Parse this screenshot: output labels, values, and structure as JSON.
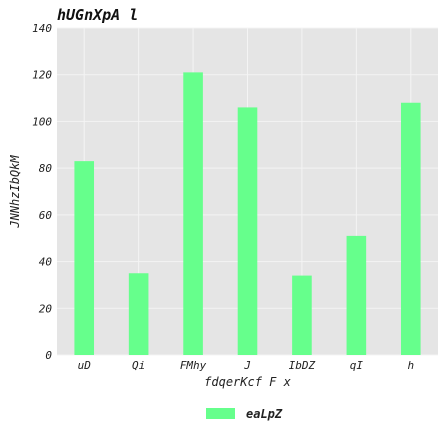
{
  "chart_data": {
    "type": "bar",
    "title": "hUGnXpA l",
    "xlabel": "fdqerKcf F x",
    "ylabel": "JNNhzIbQkM",
    "categories": [
      "uD",
      "Qi",
      "FMhy",
      "J",
      "IbDZ",
      "qI",
      "h"
    ],
    "series": [
      {
        "name": "eaLpZ",
        "values": [
          83,
          35,
          121,
          106,
          34,
          51,
          108
        ]
      }
    ],
    "ylim": [
      0,
      140
    ],
    "yticks": [
      0,
      20,
      40,
      60,
      80,
      100,
      120,
      140
    ],
    "grid": true,
    "legend_position": "bottom-center",
    "colors": {
      "bar": "#66ff8c",
      "plot_background": "#e5e5e5",
      "grid": "#f4f4f4"
    }
  }
}
